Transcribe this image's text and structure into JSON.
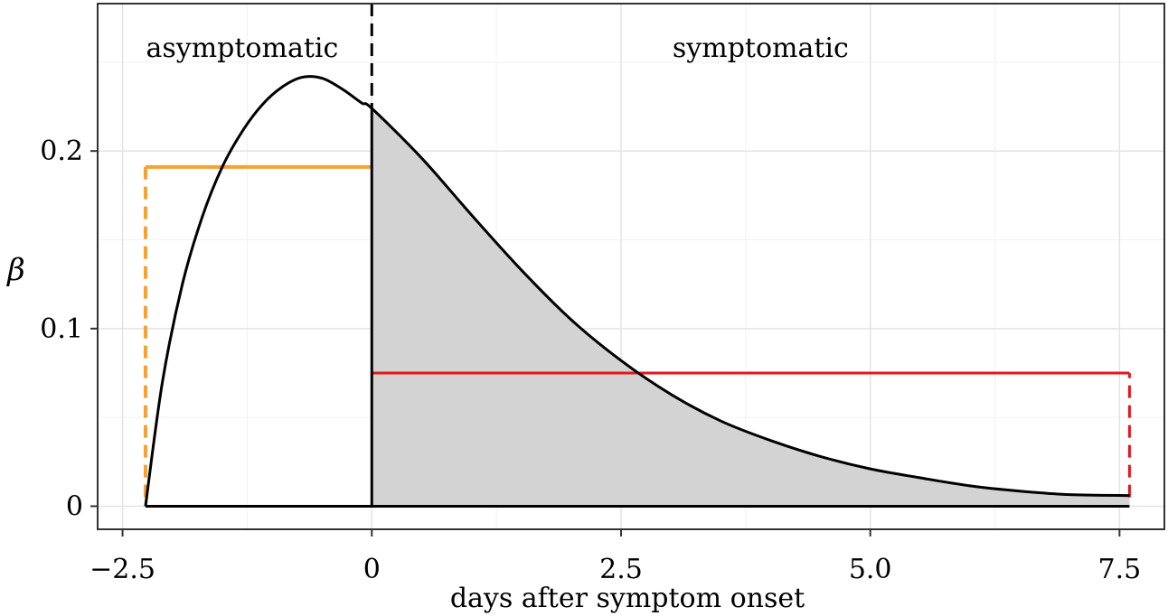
{
  "chart_data": {
    "type": "line",
    "title": "",
    "xlabel": "days after symptom onset",
    "ylabel": "β",
    "xlim": [
      -2.75,
      7.95
    ],
    "ylim": [
      -0.013,
      0.283
    ],
    "x_ticks": [
      {
        "value": -2.5,
        "label": "−2.5"
      },
      {
        "value": 0,
        "label": "0"
      },
      {
        "value": 2.5,
        "label": "2.5"
      },
      {
        "value": 5.0,
        "label": "5.0"
      },
      {
        "value": 7.5,
        "label": "7.5"
      }
    ],
    "y_ticks": [
      {
        "value": 0,
        "label": "0"
      },
      {
        "value": 0.1,
        "label": "0.1"
      },
      {
        "value": 0.2,
        "label": "0.2"
      }
    ],
    "grid": true,
    "annotations": [
      {
        "text": "asymptomatic",
        "x": -1.3,
        "y": 0.258
      },
      {
        "text": "symptomatic",
        "x": 3.9,
        "y": 0.258
      }
    ],
    "onset_line_x": 0,
    "curve": {
      "x": [
        -2.27,
        -2.1,
        -1.9,
        -1.7,
        -1.5,
        -1.3,
        -1.1,
        -0.9,
        -0.7,
        -0.5,
        -0.3,
        -0.1,
        0,
        0.5,
        1.0,
        1.5,
        2.0,
        2.5,
        3.0,
        3.5,
        4.0,
        4.5,
        5.0,
        5.5,
        6.0,
        6.5,
        7.0,
        7.6
      ],
      "y": [
        0.0,
        0.07,
        0.125,
        0.163,
        0.191,
        0.211,
        0.226,
        0.236,
        0.2415,
        0.241,
        0.235,
        0.227,
        0.224,
        0.196,
        0.164,
        0.133,
        0.105,
        0.082,
        0.063,
        0.048,
        0.037,
        0.028,
        0.021,
        0.016,
        0.0115,
        0.0085,
        0.0065,
        0.006
      ]
    },
    "shaded_region": {
      "x_start": 0,
      "x_end": 7.6,
      "color": "#d3d3d3"
    },
    "series": [
      {
        "style": "step",
        "color": "#f5a133",
        "x_start": -2.27,
        "x_end": 0,
        "level": 0.191
      },
      {
        "style": "step",
        "color": "#e8141c",
        "x_start": 0,
        "x_end": 7.6,
        "level": 0.075
      }
    ]
  }
}
